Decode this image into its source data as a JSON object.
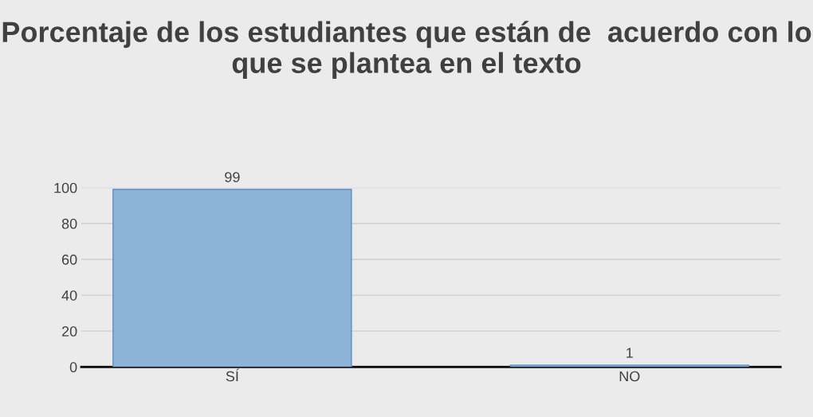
{
  "chart_data": {
    "type": "bar",
    "title": "Porcentaje de los estudiantes que están de  acuerdo con lo que se plantea en el texto",
    "categories": [
      "SÍ",
      "NO"
    ],
    "series": [
      {
        "color": "#8db3d9",
        "values": [
          99,
          1
        ]
      }
    ],
    "ylim": [
      0,
      100
    ],
    "yticks": [
      0,
      20,
      40,
      60,
      80,
      100
    ],
    "grid": "y",
    "data_labels": true
  }
}
